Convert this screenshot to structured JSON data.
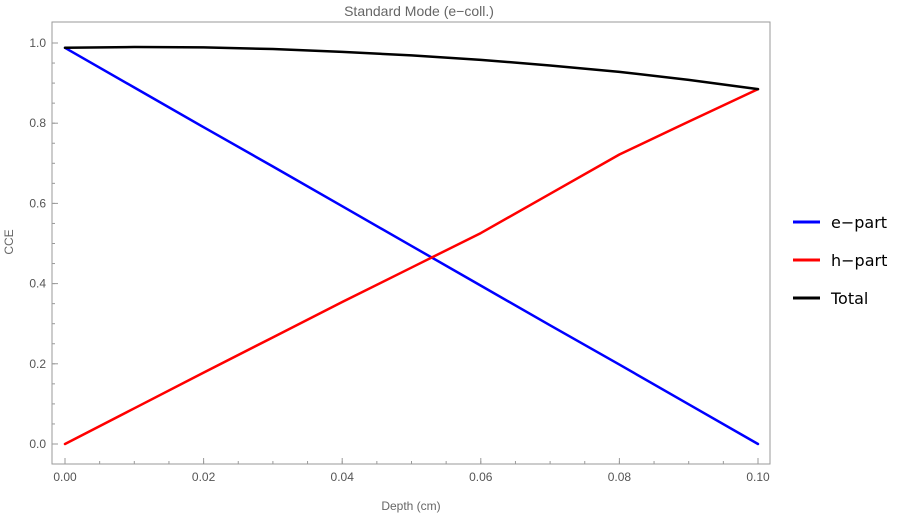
{
  "chart_data": {
    "type": "line",
    "title": "Standard Mode (e−coll.)",
    "xlabel": "Depth (cm)",
    "ylabel": "CCE",
    "xlim": [
      0.0,
      0.1
    ],
    "ylim": [
      0.0,
      1.0
    ],
    "x_ticks": [
      "0.00",
      "0.02",
      "0.04",
      "0.06",
      "0.08",
      "0.10"
    ],
    "y_ticks": [
      "0.0",
      "0.2",
      "0.4",
      "0.6",
      "0.8",
      "1.0"
    ],
    "grid": false,
    "legend_position": "right",
    "x": [
      0.0,
      0.01,
      0.02,
      0.03,
      0.04,
      0.05,
      0.06,
      0.07,
      0.08,
      0.09,
      0.1
    ],
    "series": [
      {
        "name": "e−part",
        "color": "#0000ff",
        "values": [
          0.988,
          0.889,
          0.79,
          0.692,
          0.593,
          0.494,
          0.395,
          0.296,
          0.198,
          0.099,
          0.0
        ]
      },
      {
        "name": "h−part",
        "color": "#ff0000",
        "values": [
          0.0,
          0.089,
          0.178,
          0.266,
          0.354,
          0.44,
          0.526,
          0.624,
          0.722,
          0.804,
          0.885
        ]
      },
      {
        "name": "Total",
        "color": "#000000",
        "values": [
          0.988,
          0.99,
          0.989,
          0.985,
          0.978,
          0.969,
          0.958,
          0.944,
          0.928,
          0.908,
          0.885
        ]
      }
    ]
  }
}
